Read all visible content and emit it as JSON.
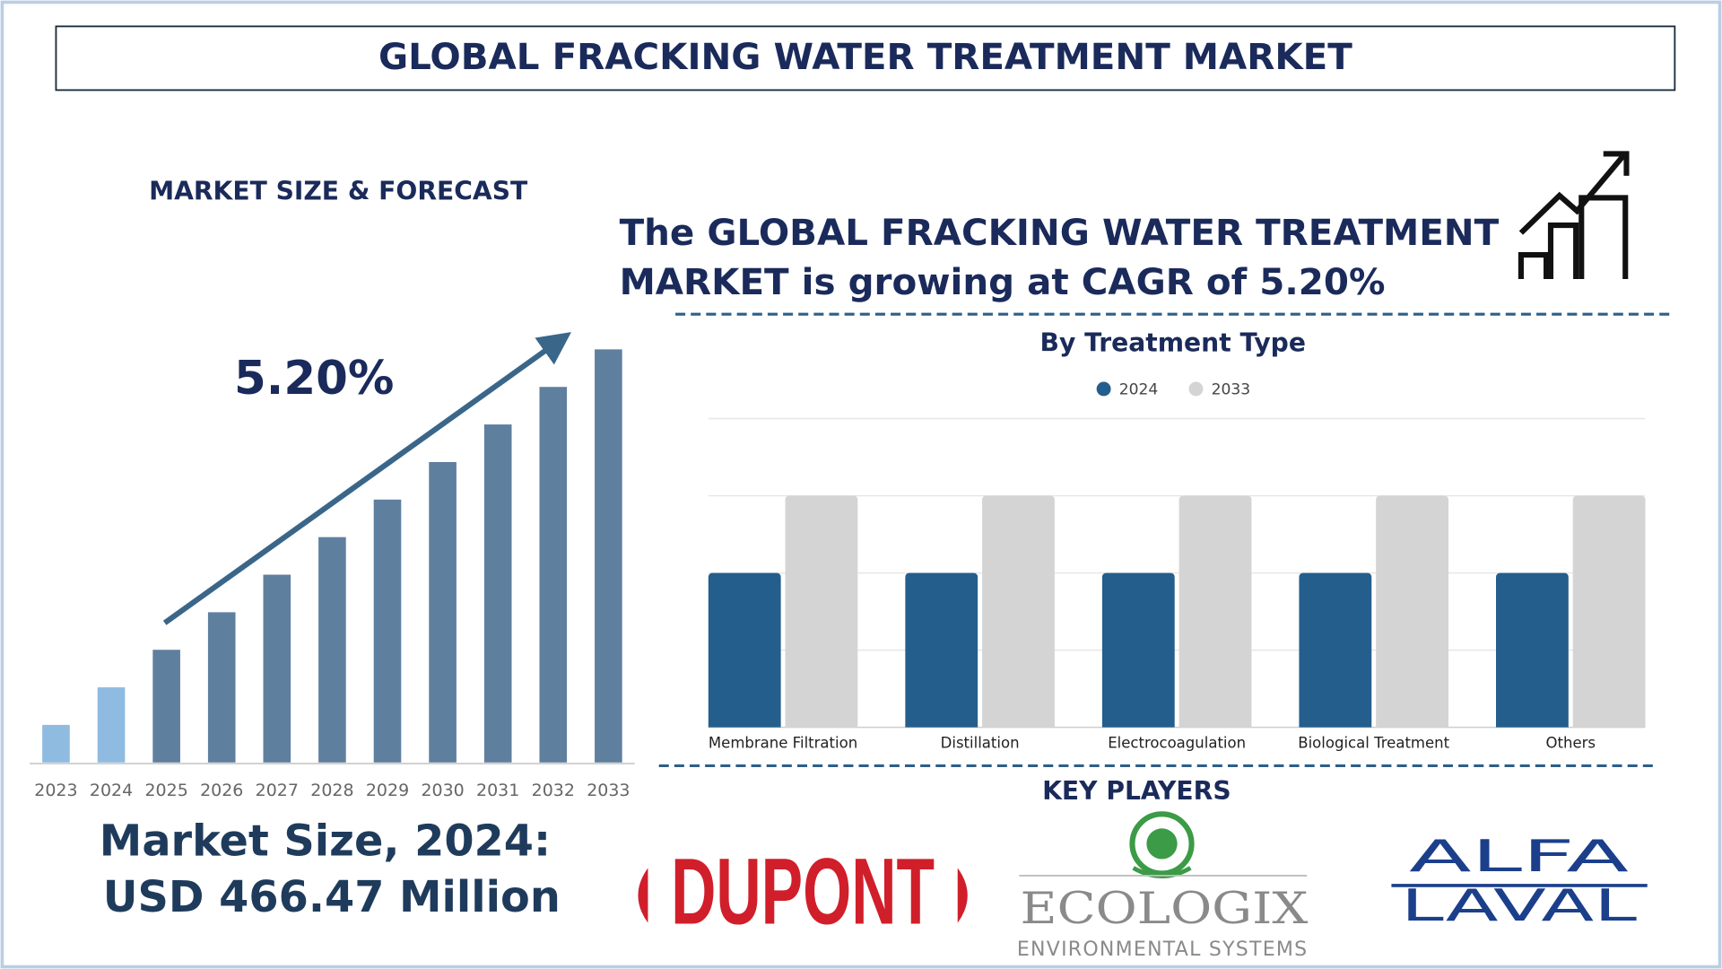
{
  "header": {
    "title": "GLOBAL FRACKING WATER TREATMENT MARKET"
  },
  "headline": {
    "lines": [
      "The GLOBAL FRACKING WATER TREATMENT",
      "MARKET is growing at CAGR of 5.20%"
    ]
  },
  "market_size": {
    "label": "Market Size, 2024:",
    "value": "USD 466.47 Million"
  },
  "chart_data": [
    {
      "type": "bar",
      "title": "MARKET SIZE & FORECAST",
      "annotation": "5.20%",
      "categories": [
        "2023",
        "2024",
        "2025",
        "2026",
        "2027",
        "2028",
        "2029",
        "2030",
        "2031",
        "2032",
        "2033"
      ],
      "values": [
        1,
        2,
        3,
        4,
        5,
        6,
        7,
        8,
        9,
        10,
        11
      ],
      "colors": [
        "#8fbbe0",
        "#8fbbe0",
        "#5f7f9f",
        "#5f7f9f",
        "#5f7f9f",
        "#5f7f9f",
        "#5f7f9f",
        "#5f7f9f",
        "#5f7f9f",
        "#5f7f9f",
        "#5f7f9f"
      ],
      "ylim": [
        0,
        11
      ]
    },
    {
      "type": "grouped_bar",
      "title": "By Treatment Type",
      "categories": [
        "Membrane Filtration",
        "Distillation",
        "Electrocoagulation",
        "Biological Treatment",
        "Others"
      ],
      "series": [
        {
          "name": "2024",
          "color": "#245e8c",
          "values": [
            2,
            2,
            2,
            2,
            2
          ]
        },
        {
          "name": "2033",
          "color": "#d4d4d4",
          "values": [
            3,
            3,
            3,
            3,
            3
          ]
        }
      ],
      "ylim": [
        0,
        4
      ],
      "yticks": [
        0,
        1,
        2,
        3,
        4
      ],
      "grid": true
    }
  ],
  "key_players": {
    "title": "KEY PLAYERS",
    "logos": [
      {
        "name": "DUPONT"
      },
      {
        "name": "ECOLOGIX",
        "tagline": "ENVIRONMENTAL SYSTEMS"
      },
      {
        "lines": [
          "ALFA",
          "LAVAL"
        ]
      }
    ]
  }
}
